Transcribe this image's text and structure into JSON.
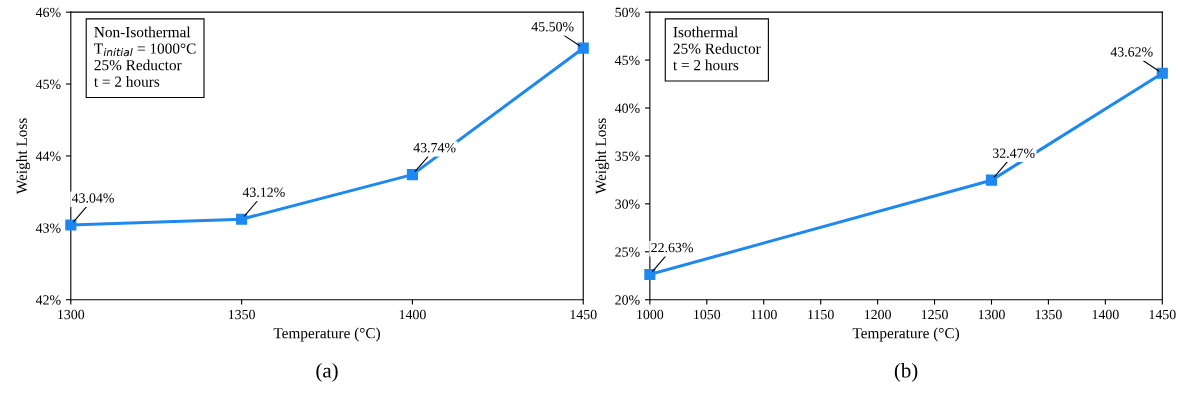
{
  "chart_data": [
    {
      "type": "line",
      "xlabel": "Temperature (°C)",
      "ylabel": "Weight Loss",
      "x": [
        1300,
        1350,
        1400,
        1450
      ],
      "series": [
        {
          "color": "#1e88f0",
          "values": [
            43.04,
            43.12,
            43.74,
            45.5
          ],
          "value_labels": [
            "43.04%",
            "43.12%",
            "43.74%",
            "45.50%"
          ]
        }
      ],
      "xlim": [
        1300,
        1450
      ],
      "xticks": [
        1300,
        1350,
        1400,
        1450
      ],
      "ylim": [
        42,
        46
      ],
      "yticks": [
        {
          "value": 42,
          "label": "42%"
        },
        {
          "value": 43,
          "label": "43%"
        },
        {
          "value": 44,
          "label": "44%"
        },
        {
          "value": 45,
          "label": "45%"
        },
        {
          "value": 46,
          "label": "46%"
        }
      ],
      "marker": "square",
      "line_style": "solid",
      "grid": false,
      "legend": false,
      "annotations": [
        "Non-Isothermal\nT$_{initial}$ = 1000°C\n25% Reductor\nt = 2 hours",
        "(a)"
      ]
    },
    {
      "type": "line",
      "xlabel": "Temperature (°C)",
      "ylabel": "Weight Loss",
      "x": [
        1000,
        1300,
        1450
      ],
      "series": [
        {
          "color": "#1e88f0",
          "values": [
            22.63,
            32.47,
            43.62
          ],
          "value_labels": [
            "22.63%",
            "32.47%",
            "43.62%"
          ]
        }
      ],
      "xlim": [
        1000,
        1450
      ],
      "xticks": [
        1000,
        1050,
        1100,
        1150,
        1200,
        1250,
        1300,
        1350,
        1400,
        1450
      ],
      "ylim": [
        20,
        50
      ],
      "yticks": [
        {
          "value": 20,
          "label": "20%"
        },
        {
          "value": 25,
          "label": "25%"
        },
        {
          "value": 30,
          "label": "30%"
        },
        {
          "value": 35,
          "label": "35%"
        },
        {
          "value": 40,
          "label": "40%"
        },
        {
          "value": 45,
          "label": "45%"
        },
        {
          "value": 50,
          "label": "50%"
        }
      ],
      "marker": "square",
      "line_style": "solid",
      "grid": false,
      "legend": false,
      "annotations": [
        "Isothermal\n25% Reductor\nt = 2 hours",
        "(b)"
      ]
    }
  ]
}
